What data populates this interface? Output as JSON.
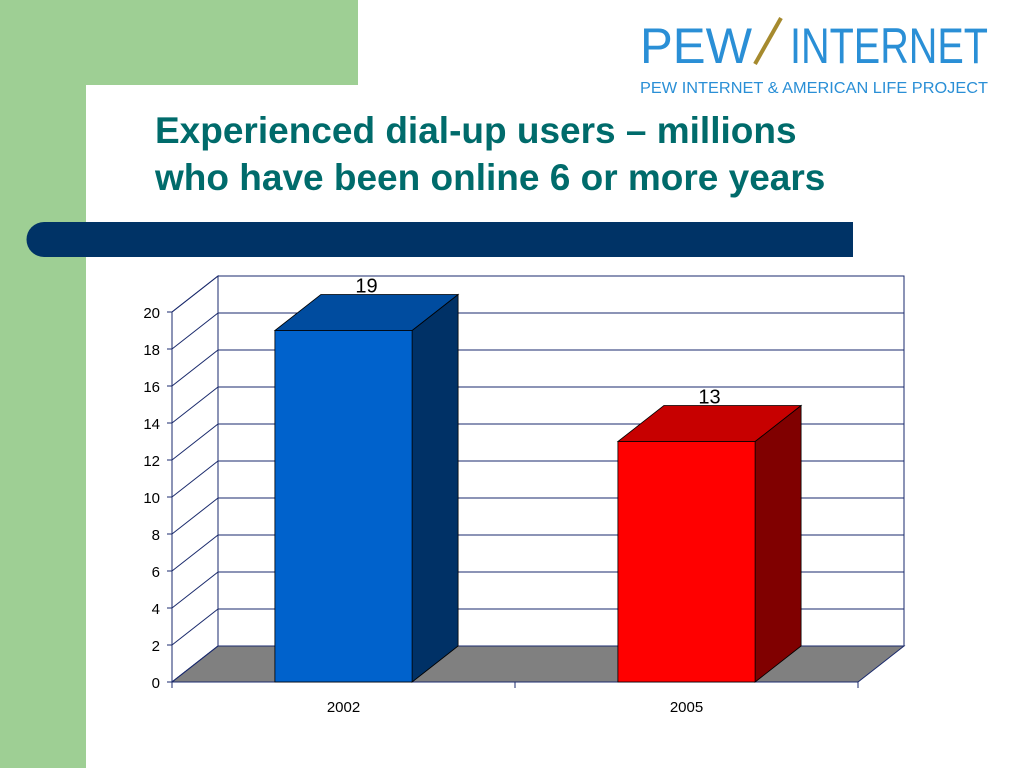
{
  "logo": {
    "left": "PEW",
    "right": "INTERNET",
    "tagline": "PEW INTERNET & AMERICAN LIFE PROJECT"
  },
  "chart_data": {
    "type": "bar3d",
    "title": [
      "Experienced dial-up users – millions",
      "who have been online 6 or more years"
    ],
    "categories": [
      "2002",
      "2005"
    ],
    "values": [
      19,
      13
    ],
    "colors": [
      "#0062cc",
      "#ff0000"
    ],
    "ylim": [
      0,
      20
    ],
    "yticks": [
      0,
      2,
      4,
      6,
      8,
      10,
      12,
      14,
      16,
      18,
      20
    ],
    "grid": true
  }
}
